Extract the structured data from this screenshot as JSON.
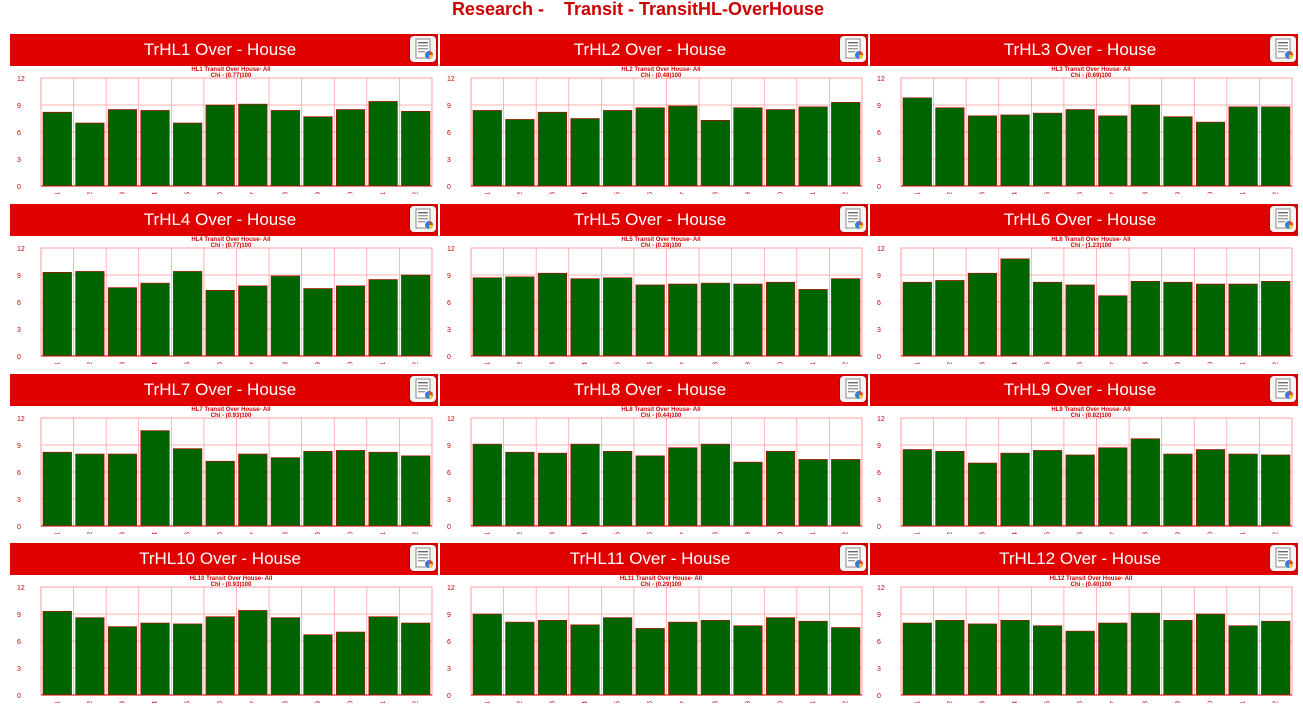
{
  "page": {
    "title": "Research -    Transit - TransitHL-OverHouse"
  },
  "colors": {
    "header_bg": "#e00000",
    "bar_fill": "#006400",
    "grid": "#ff9999",
    "title_text": "#cc0000"
  },
  "chart_data": [
    {
      "type": "bar",
      "title": "TrHL1 Over - House",
      "subtitle_line1": "HL1 Transit Over House- All",
      "subtitle_line2": "Chi - (0.77)100",
      "categories": [
        "1",
        "2",
        "3",
        "4",
        "5",
        "6",
        "7",
        "8",
        "9",
        "10",
        "11",
        "12"
      ],
      "values": [
        8.2,
        7.0,
        8.5,
        8.4,
        7.0,
        9.0,
        9.1,
        8.4,
        7.7,
        8.5,
        9.4,
        8.3
      ],
      "ylim": [
        0,
        12
      ],
      "yticks": [
        0,
        3,
        6,
        9,
        12
      ]
    },
    {
      "type": "bar",
      "title": "TrHL2 Over - House",
      "subtitle_line1": "HL2 Transit Over House- All",
      "subtitle_line2": "Chi - (0.48)100",
      "categories": [
        "1",
        "2",
        "3",
        "4",
        "5",
        "6",
        "7",
        "8",
        "9",
        "10",
        "11",
        "12"
      ],
      "values": [
        8.4,
        7.4,
        8.2,
        7.5,
        8.4,
        8.7,
        8.9,
        7.3,
        8.7,
        8.5,
        8.8,
        9.3
      ],
      "ylim": [
        0,
        12
      ],
      "yticks": [
        0,
        3,
        6,
        9,
        12
      ]
    },
    {
      "type": "bar",
      "title": "TrHL3 Over - House",
      "subtitle_line1": "HL3 Transit Over House- All",
      "subtitle_line2": "Chi - (0.69)100",
      "categories": [
        "1",
        "2",
        "3",
        "4",
        "5",
        "6",
        "7",
        "8",
        "9",
        "10",
        "11",
        "12"
      ],
      "values": [
        9.8,
        8.7,
        7.8,
        7.9,
        8.1,
        8.5,
        7.8,
        9.0,
        7.7,
        7.1,
        8.8,
        8.8
      ],
      "ylim": [
        0,
        12
      ],
      "yticks": [
        0,
        3,
        6,
        9,
        12
      ]
    },
    {
      "type": "bar",
      "title": "TrHL4 Over - House",
      "subtitle_line1": "HL4 Transit Over House- All",
      "subtitle_line2": "Chi - (0.77)100",
      "categories": [
        "1",
        "2",
        "3",
        "4",
        "5",
        "6",
        "7",
        "8",
        "9",
        "10",
        "11",
        "12"
      ],
      "values": [
        9.3,
        9.4,
        7.6,
        8.1,
        9.4,
        7.3,
        7.8,
        8.9,
        7.5,
        7.8,
        8.5,
        9.0
      ],
      "ylim": [
        0,
        12
      ],
      "yticks": [
        0,
        3,
        6,
        9,
        12
      ]
    },
    {
      "type": "bar",
      "title": "TrHL5 Over - House",
      "subtitle_line1": "HL5 Transit Over House- All",
      "subtitle_line2": "Chi - (0.28)100",
      "categories": [
        "1",
        "2",
        "3",
        "4",
        "5",
        "6",
        "7",
        "8",
        "9",
        "10",
        "11",
        "12"
      ],
      "values": [
        8.7,
        8.8,
        9.2,
        8.6,
        8.7,
        7.9,
        8.0,
        8.1,
        8.0,
        8.2,
        7.4,
        8.6
      ],
      "ylim": [
        0,
        12
      ],
      "yticks": [
        0,
        3,
        6,
        9,
        12
      ]
    },
    {
      "type": "bar",
      "title": "TrHL6 Over - House",
      "subtitle_line1": "HL6 Transit Over House- All",
      "subtitle_line2": "Chi - (1.23)100",
      "categories": [
        "1",
        "2",
        "3",
        "4",
        "5",
        "6",
        "7",
        "8",
        "9",
        "10",
        "11",
        "12"
      ],
      "values": [
        8.2,
        8.4,
        9.2,
        10.8,
        8.2,
        7.9,
        6.7,
        8.3,
        8.2,
        8.0,
        8.0,
        8.3
      ],
      "ylim": [
        0,
        12
      ],
      "yticks": [
        0,
        3,
        6,
        9,
        12
      ]
    },
    {
      "type": "bar",
      "title": "TrHL7 Over - House",
      "subtitle_line1": "HL7 Transit Over House- All",
      "subtitle_line2": "Chi - (0.93)100",
      "categories": [
        "1",
        "2",
        "3",
        "4",
        "5",
        "6",
        "7",
        "8",
        "9",
        "10",
        "11",
        "12"
      ],
      "values": [
        8.2,
        8.0,
        8.0,
        10.6,
        8.6,
        7.2,
        8.0,
        7.6,
        8.3,
        8.4,
        8.2,
        7.8
      ],
      "ylim": [
        0,
        12
      ],
      "yticks": [
        0,
        3,
        6,
        9,
        12
      ]
    },
    {
      "type": "bar",
      "title": "TrHL8 Over - House",
      "subtitle_line1": "HL8 Transit Over House- All",
      "subtitle_line2": "Chi - (0.44)100",
      "categories": [
        "1",
        "2",
        "3",
        "4",
        "5",
        "6",
        "7",
        "8",
        "9",
        "10",
        "11",
        "12"
      ],
      "values": [
        9.1,
        8.2,
        8.1,
        9.1,
        8.3,
        7.8,
        8.7,
        9.1,
        7.1,
        8.3,
        7.4,
        7.4
      ],
      "ylim": [
        0,
        12
      ],
      "yticks": [
        0,
        3,
        6,
        9,
        12
      ]
    },
    {
      "type": "bar",
      "title": "TrHL9 Over - House",
      "subtitle_line1": "HL9 Transit Over House- All",
      "subtitle_line2": "Chi - (0.82)100",
      "categories": [
        "1",
        "2",
        "3",
        "4",
        "5",
        "6",
        "7",
        "8",
        "9",
        "10",
        "11",
        "12"
      ],
      "values": [
        8.5,
        8.3,
        7.0,
        8.1,
        8.4,
        7.9,
        8.7,
        9.7,
        8.0,
        8.5,
        8.0,
        7.9
      ],
      "ylim": [
        0,
        12
      ],
      "yticks": [
        0,
        3,
        6,
        9,
        12
      ]
    },
    {
      "type": "bar",
      "title": "TrHL10 Over - House",
      "subtitle_line1": "HL10 Transit Over House- All",
      "subtitle_line2": "Chi - (0.93)100",
      "categories": [
        "1",
        "2",
        "3",
        "4",
        "5",
        "6",
        "7",
        "8",
        "9",
        "10",
        "11",
        "12"
      ],
      "values": [
        9.3,
        8.6,
        7.6,
        8.0,
        7.9,
        8.7,
        9.4,
        8.6,
        6.7,
        7.0,
        8.7,
        8.0
      ],
      "ylim": [
        0,
        12
      ],
      "yticks": [
        0,
        3,
        6,
        9,
        12
      ]
    },
    {
      "type": "bar",
      "title": "TrHL11 Over - House",
      "subtitle_line1": "HL11 Transit Over House- All",
      "subtitle_line2": "Chi - (0.29)100",
      "categories": [
        "1",
        "2",
        "3",
        "4",
        "5",
        "6",
        "7",
        "8",
        "9",
        "10",
        "11",
        "12"
      ],
      "values": [
        9.0,
        8.1,
        8.3,
        7.8,
        8.6,
        7.4,
        8.1,
        8.3,
        7.7,
        8.6,
        8.2,
        7.5
      ],
      "ylim": [
        0,
        12
      ],
      "yticks": [
        0,
        3,
        6,
        9,
        12
      ]
    },
    {
      "type": "bar",
      "title": "TrHL12 Over - House",
      "subtitle_line1": "HL12 Transit Over House- All",
      "subtitle_line2": "Chi - (0.40)100",
      "categories": [
        "1",
        "2",
        "3",
        "4",
        "5",
        "6",
        "7",
        "8",
        "9",
        "10",
        "11",
        "12"
      ],
      "values": [
        8.0,
        8.3,
        7.9,
        8.3,
        7.7,
        7.1,
        8.0,
        9.1,
        8.3,
        9.0,
        7.7,
        8.2
      ],
      "ylim": [
        0,
        12
      ],
      "yticks": [
        0,
        3,
        6,
        9,
        12
      ]
    }
  ]
}
